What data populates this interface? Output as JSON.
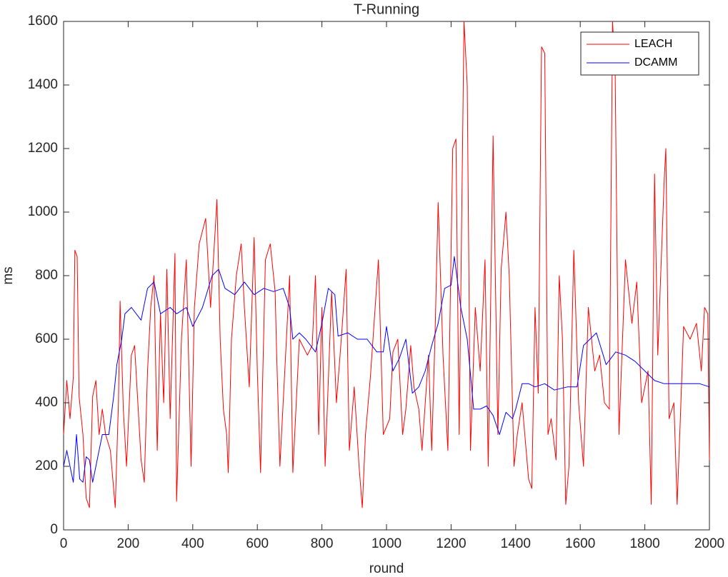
{
  "chart_data": {
    "type": "line",
    "title": "T-Running",
    "x_label": "round",
    "y_label": "ms",
    "xlim": [
      0,
      2000
    ],
    "ylim": [
      0,
      1600
    ],
    "xticks": [
      0,
      200,
      400,
      600,
      800,
      1000,
      1200,
      1400,
      1600,
      1800,
      2000
    ],
    "yticks": [
      0,
      200,
      400,
      600,
      800,
      1000,
      1200,
      1400,
      1600
    ],
    "legend": "top-right",
    "series": [
      {
        "name": "LEACH",
        "color": "#ff0000",
        "x": [
          0,
          10,
          20,
          30,
          35,
          42,
          48,
          60,
          70,
          80,
          90,
          100,
          110,
          120,
          130,
          145,
          160,
          170,
          175,
          185,
          195,
          210,
          220,
          240,
          250,
          260,
          270,
          280,
          290,
          300,
          310,
          320,
          330,
          345,
          350,
          365,
          380,
          395,
          405,
          420,
          440,
          455,
          470,
          475,
          485,
          495,
          505,
          510,
          520,
          535,
          550,
          560,
          575,
          590,
          600,
          610,
          625,
          640,
          655,
          660,
          670,
          690,
          700,
          710,
          730,
          755,
          770,
          780,
          790,
          800,
          810,
          830,
          845,
          860,
          875,
          885,
          900,
          915,
          925,
          935,
          950,
          975,
          990,
          1010,
          1020,
          1035,
          1050,
          1060,
          1075,
          1085,
          1100,
          1110,
          1130,
          1140,
          1150,
          1160,
          1175,
          1190,
          1205,
          1215,
          1225,
          1240,
          1250,
          1260,
          1275,
          1290,
          1305,
          1315,
          1330,
          1345,
          1355,
          1370,
          1380,
          1395,
          1405,
          1420,
          1440,
          1450,
          1460,
          1470,
          1480,
          1490,
          1500,
          1510,
          1525,
          1535,
          1545,
          1555,
          1565,
          1580,
          1595,
          1610,
          1625,
          1645,
          1660,
          1675,
          1690,
          1700,
          1708,
          1720,
          1740,
          1760,
          1775,
          1790,
          1810,
          1820,
          1830,
          1840,
          1860,
          1865,
          1875,
          1890,
          1900,
          1910,
          1920,
          1940,
          1960,
          1975,
          1985,
          1995,
          2000
        ],
        "values": [
          300,
          470,
          350,
          480,
          880,
          860,
          420,
          300,
          100,
          70,
          420,
          470,
          300,
          380,
          300,
          250,
          70,
          400,
          720,
          380,
          200,
          550,
          580,
          220,
          150,
          500,
          700,
          800,
          250,
          680,
          400,
          820,
          350,
          870,
          90,
          600,
          850,
          200,
          700,
          900,
          980,
          700,
          950,
          1040,
          600,
          380,
          300,
          180,
          600,
          800,
          900,
          700,
          450,
          920,
          500,
          180,
          850,
          900,
          750,
          550,
          200,
          600,
          800,
          180,
          600,
          550,
          580,
          800,
          300,
          700,
          200,
          750,
          400,
          600,
          820,
          250,
          450,
          200,
          70,
          300,
          480,
          850,
          300,
          350,
          560,
          600,
          300,
          380,
          580,
          450,
          380,
          250,
          550,
          250,
          600,
          1030,
          550,
          250,
          1200,
          1230,
          300,
          1600,
          1400,
          250,
          700,
          500,
          850,
          200,
          1240,
          300,
          820,
          1000,
          800,
          200,
          300,
          400,
          160,
          130,
          700,
          430,
          1520,
          1500,
          300,
          350,
          220,
          800,
          600,
          80,
          200,
          880,
          400,
          200,
          700,
          500,
          550,
          400,
          380,
          1600,
          1450,
          300,
          850,
          650,
          780,
          400,
          500,
          80,
          1120,
          550,
          1100,
          1200,
          350,
          400,
          80,
          350,
          640,
          600,
          650,
          500,
          700,
          680,
          220
        ]
      },
      {
        "name": "DCAMM",
        "color": "#0000ff",
        "x": [
          0,
          10,
          20,
          30,
          40,
          50,
          60,
          70,
          80,
          90,
          100,
          110,
          120,
          140,
          155,
          165,
          180,
          190,
          210,
          240,
          260,
          280,
          300,
          330,
          350,
          380,
          400,
          430,
          460,
          480,
          500,
          530,
          560,
          590,
          620,
          650,
          680,
          700,
          710,
          730,
          750,
          780,
          800,
          820,
          840,
          850,
          880,
          910,
          940,
          970,
          990,
          1000,
          1020,
          1040,
          1060,
          1080,
          1100,
          1120,
          1140,
          1160,
          1180,
          1200,
          1210,
          1230,
          1250,
          1270,
          1290,
          1310,
          1330,
          1350,
          1370,
          1390,
          1400,
          1420,
          1440,
          1460,
          1490,
          1520,
          1560,
          1590,
          1610,
          1630,
          1650,
          1680,
          1710,
          1740,
          1770,
          1800,
          1830,
          1860,
          1900,
          1940,
          1970,
          2000
        ],
        "values": [
          200,
          250,
          200,
          150,
          300,
          160,
          150,
          230,
          220,
          150,
          200,
          250,
          300,
          300,
          420,
          520,
          600,
          680,
          700,
          660,
          760,
          780,
          680,
          700,
          680,
          700,
          640,
          700,
          800,
          820,
          760,
          740,
          780,
          740,
          760,
          750,
          760,
          700,
          600,
          620,
          600,
          560,
          650,
          760,
          740,
          610,
          620,
          600,
          600,
          560,
          560,
          640,
          500,
          540,
          600,
          430,
          450,
          500,
          580,
          650,
          760,
          770,
          860,
          700,
          600,
          380,
          380,
          390,
          360,
          300,
          370,
          350,
          380,
          460,
          460,
          450,
          460,
          440,
          450,
          450,
          580,
          600,
          620,
          520,
          560,
          550,
          530,
          500,
          470,
          460,
          460,
          460,
          460,
          450
        ]
      }
    ]
  }
}
